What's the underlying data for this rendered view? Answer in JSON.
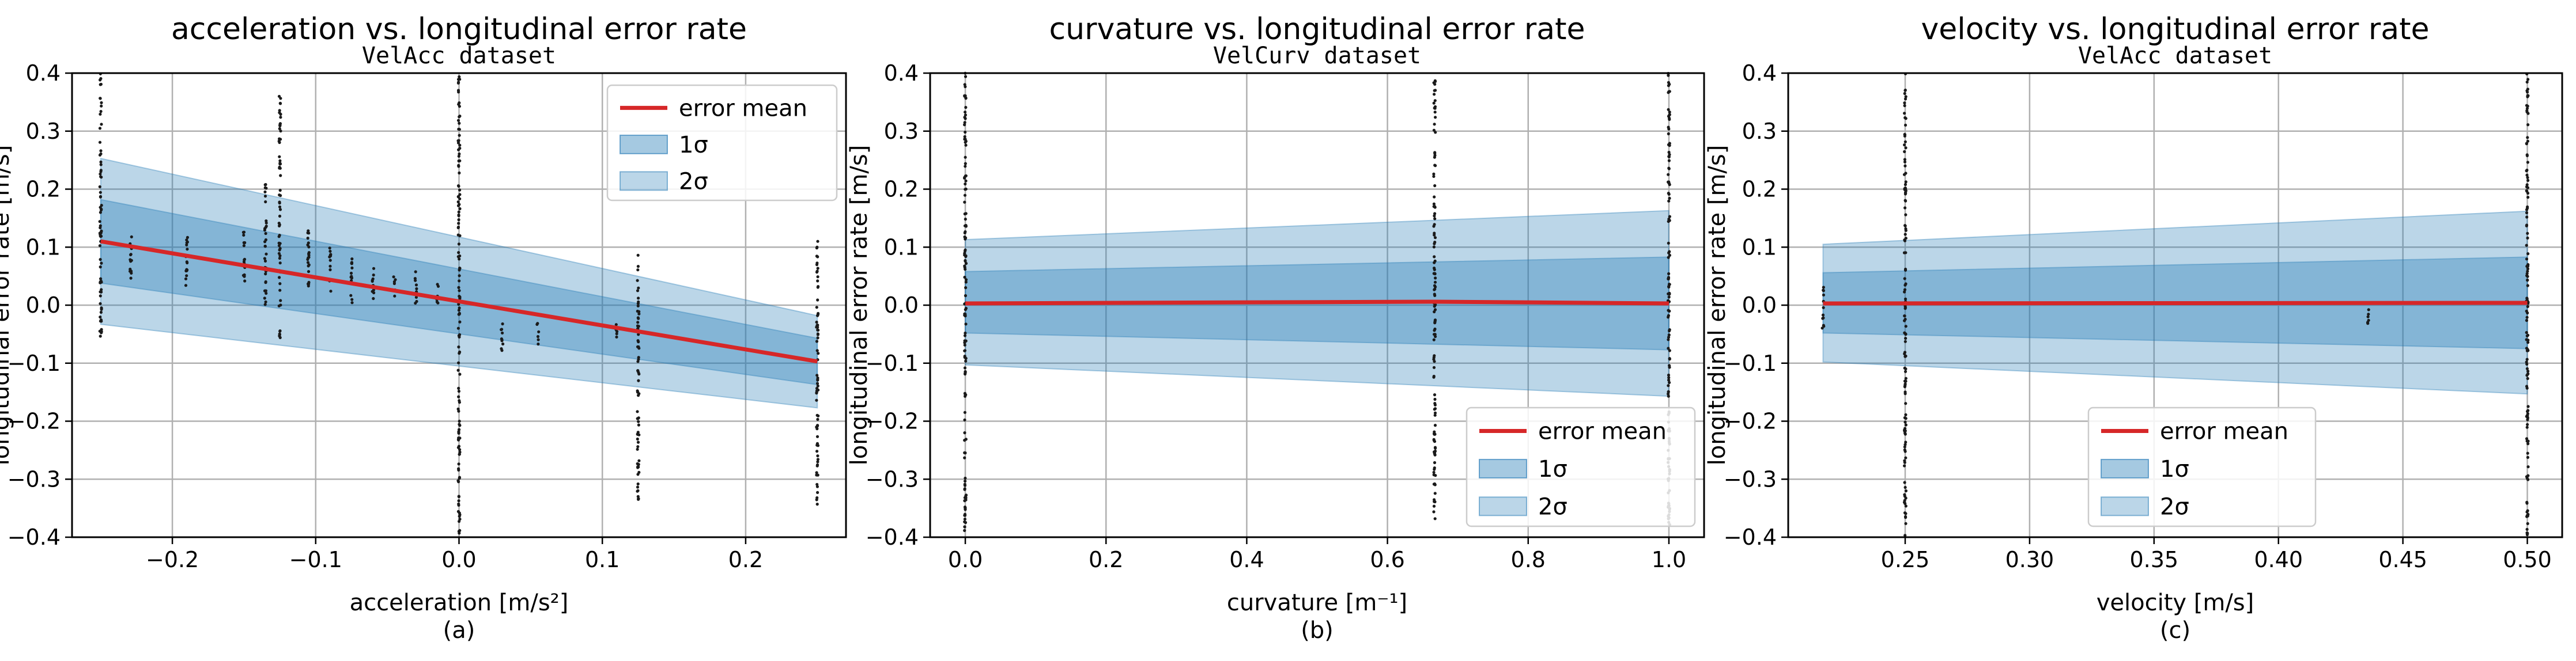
{
  "colors": {
    "mean": "#d62728",
    "band": "#1f77b4",
    "points": "#1a1a1a",
    "grid": "#b0b0b0"
  },
  "chart_data": [
    {
      "type": "line",
      "panel": "(a)",
      "title": "acceleration vs. longitudinal error rate",
      "subtitle": "VelAcc dataset",
      "xlabel": "acceleration [m/s²]",
      "ylabel": "longitudinal error rate [m/s]",
      "xlim": [
        -0.27,
        0.27
      ],
      "ylim": [
        -0.4,
        0.4
      ],
      "xticks": [
        -0.2,
        -0.1,
        0.0,
        0.1,
        0.2
      ],
      "xtick_labels": [
        "−0.2",
        "−0.1",
        "0.0",
        "0.1",
        "0.2"
      ],
      "yticks": [
        -0.4,
        -0.3,
        -0.2,
        -0.1,
        0.0,
        0.1,
        0.2,
        0.3,
        0.4
      ],
      "ytick_labels": [
        "−0.4",
        "−0.3",
        "−0.2",
        "−0.1",
        "0.0",
        "0.1",
        "0.2",
        "0.3",
        "0.4"
      ],
      "grid": true,
      "legend_position": "top-right",
      "legend": [
        "error mean",
        "1σ",
        "2σ"
      ],
      "mean_line": {
        "x": [
          -0.25,
          0.25
        ],
        "y": [
          0.11,
          -0.097
        ]
      },
      "band_1sigma": {
        "x": [
          -0.25,
          0.25
        ],
        "upper": [
          0.182,
          -0.057
        ],
        "lower": [
          0.038,
          -0.137
        ]
      },
      "band_2sigma": {
        "x": [
          -0.25,
          0.25
        ],
        "upper": [
          0.253,
          -0.018
        ],
        "lower": [
          -0.033,
          -0.177
        ]
      },
      "scatter_columns": [
        {
          "x": -0.25,
          "ymin": -0.06,
          "ymax": 0.4
        },
        {
          "x": -0.229,
          "ymin": 0.04,
          "ymax": 0.13
        },
        {
          "x": -0.19,
          "ymin": 0.03,
          "ymax": 0.13
        },
        {
          "x": -0.15,
          "ymin": 0.03,
          "ymax": 0.13
        },
        {
          "x": -0.135,
          "ymin": 0.0,
          "ymax": 0.22
        },
        {
          "x": -0.125,
          "ymin": -0.06,
          "ymax": 0.36
        },
        {
          "x": -0.105,
          "ymin": 0.0,
          "ymax": 0.14
        },
        {
          "x": -0.09,
          "ymin": 0.02,
          "ymax": 0.1
        },
        {
          "x": -0.075,
          "ymin": 0.0,
          "ymax": 0.08
        },
        {
          "x": -0.06,
          "ymin": 0.01,
          "ymax": 0.07
        },
        {
          "x": -0.045,
          "ymin": 0.01,
          "ymax": 0.05
        },
        {
          "x": -0.03,
          "ymin": 0.0,
          "ymax": 0.06
        },
        {
          "x": -0.015,
          "ymin": 0.0,
          "ymax": 0.04
        },
        {
          "x": 0.0,
          "ymin": -0.4,
          "ymax": 0.4
        },
        {
          "x": 0.03,
          "ymin": -0.08,
          "ymax": -0.02
        },
        {
          "x": 0.055,
          "ymin": -0.07,
          "ymax": -0.03
        },
        {
          "x": 0.11,
          "ymin": -0.06,
          "ymax": -0.03
        },
        {
          "x": 0.125,
          "ymin": -0.34,
          "ymax": 0.1
        },
        {
          "x": 0.25,
          "ymin": -0.35,
          "ymax": 0.11
        }
      ]
    },
    {
      "type": "line",
      "panel": "(b)",
      "title": "curvature vs. longitudinal error rate",
      "subtitle": "VelCurv dataset",
      "xlabel": "curvature [m⁻¹]",
      "ylabel": "longitudinal error rate [m/s]",
      "xlim": [
        -0.05,
        1.05
      ],
      "ylim": [
        -0.4,
        0.4
      ],
      "xticks": [
        0.0,
        0.2,
        0.4,
        0.6,
        0.8,
        1.0
      ],
      "xtick_labels": [
        "0.0",
        "0.2",
        "0.4",
        "0.6",
        "0.8",
        "1.0"
      ],
      "yticks": [
        -0.4,
        -0.3,
        -0.2,
        -0.1,
        0.0,
        0.1,
        0.2,
        0.3,
        0.4
      ],
      "ytick_labels": [
        "−0.4",
        "−0.3",
        "−0.2",
        "−0.1",
        "0.0",
        "0.1",
        "0.2",
        "0.3",
        "0.4"
      ],
      "grid": true,
      "legend_position": "bottom-right",
      "legend": [
        "error mean",
        "1σ",
        "2σ"
      ],
      "mean_line": {
        "x": [
          0.0,
          0.667,
          1.0
        ],
        "y": [
          0.003,
          0.006,
          0.003
        ]
      },
      "band_1sigma": {
        "x": [
          0.0,
          1.0
        ],
        "upper": [
          0.058,
          0.083
        ],
        "lower": [
          -0.048,
          -0.077
        ]
      },
      "band_2sigma": {
        "x": [
          0.0,
          1.0
        ],
        "upper": [
          0.113,
          0.163
        ],
        "lower": [
          -0.103,
          -0.157
        ]
      },
      "scatter_columns": [
        {
          "x": 0.0,
          "ymin": -0.4,
          "ymax": 0.4
        },
        {
          "x": 0.667,
          "ymin": -0.37,
          "ymax": 0.39
        },
        {
          "x": 1.0,
          "ymin": -0.4,
          "ymax": 0.4
        }
      ]
    },
    {
      "type": "line",
      "panel": "(c)",
      "title": "velocity vs. longitudinal error rate",
      "subtitle": "VelAcc dataset",
      "xlabel": "velocity [m/s]",
      "ylabel": "longitudinal error rate [m/s]",
      "xlim": [
        0.203,
        0.514
      ],
      "ylim": [
        -0.4,
        0.4
      ],
      "xticks": [
        0.25,
        0.3,
        0.35,
        0.4,
        0.45,
        0.5
      ],
      "xtick_labels": [
        "0.25",
        "0.30",
        "0.35",
        "0.40",
        "0.45",
        "0.50"
      ],
      "yticks": [
        -0.4,
        -0.3,
        -0.2,
        -0.1,
        0.0,
        0.1,
        0.2,
        0.3,
        0.4
      ],
      "ytick_labels": [
        "−0.4",
        "−0.3",
        "−0.2",
        "−0.1",
        "0.0",
        "0.1",
        "0.2",
        "0.3",
        "0.4"
      ],
      "grid": true,
      "legend_position": "bottom-center",
      "legend": [
        "error mean",
        "1σ",
        "2σ"
      ],
      "mean_line": {
        "x": [
          0.217,
          0.5
        ],
        "y": [
          0.003,
          0.004
        ]
      },
      "band_1sigma": {
        "x": [
          0.217,
          0.5
        ],
        "upper": [
          0.056,
          0.083
        ],
        "lower": [
          -0.048,
          -0.075
        ]
      },
      "band_2sigma": {
        "x": [
          0.217,
          0.5
        ],
        "upper": [
          0.105,
          0.162
        ],
        "lower": [
          -0.098,
          -0.153
        ]
      },
      "scatter_columns": [
        {
          "x": 0.217,
          "ymin": -0.04,
          "ymax": 0.035
        },
        {
          "x": 0.25,
          "ymin": -0.4,
          "ymax": 0.4
        },
        {
          "x": 0.436,
          "ymin": -0.035,
          "ymax": -0.005
        },
        {
          "x": 0.5,
          "ymin": -0.4,
          "ymax": 0.4
        }
      ]
    }
  ]
}
